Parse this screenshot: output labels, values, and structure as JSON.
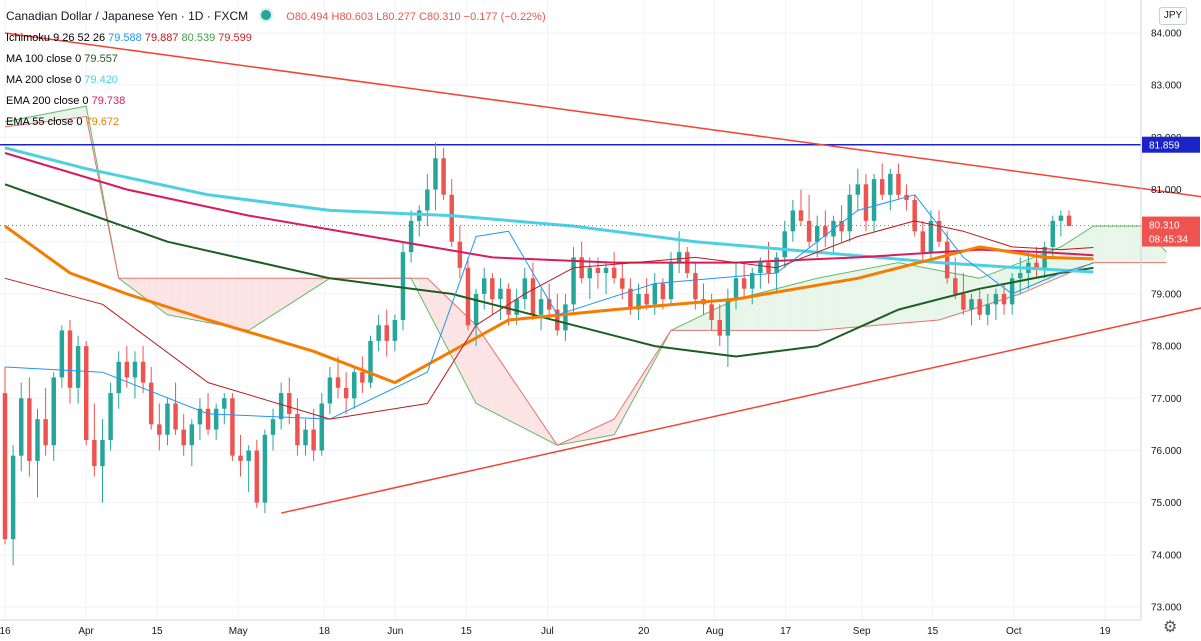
{
  "header": {
    "symbol_title": "Canadian Dollar / Japanese Yen · 1D · FXCM",
    "ohlc": {
      "o": "O80.494",
      "h": "H80.603",
      "l": "L80.277",
      "c": "C80.310",
      "change": "−0.177 (−0.22%)"
    }
  },
  "indicators": [
    {
      "label": "Ichimoku 9 26 52 26",
      "values": [
        "79.588",
        "79.887",
        "80.539",
        "79.599"
      ],
      "colors": [
        "#2196f3",
        "#b71c1c",
        "#43a047",
        "#c62828"
      ]
    },
    {
      "label": "MA 100 close 0",
      "values": [
        "79.557"
      ],
      "colors": [
        "#1b5e20"
      ]
    },
    {
      "label": "MA 200 close 0",
      "values": [
        "79.420"
      ],
      "colors": [
        "#4dd0e1"
      ]
    },
    {
      "label": "EMA 200 close 0",
      "values": [
        "79.738"
      ],
      "colors": [
        "#d81b60"
      ]
    },
    {
      "label": "EMA 55 close 0",
      "values": [
        "79.672"
      ],
      "colors": [
        "#f57c00"
      ]
    }
  ],
  "currency_button": "JPY",
  "price_labels": {
    "resistance": "81.859",
    "last": "80.310",
    "countdown": "08:45:34"
  },
  "colors": {
    "up": "#26a69a",
    "down": "#ef5350",
    "resistance_line": "#1a23c8",
    "trend_lines": "#f44336",
    "ma100": "#1b5e20",
    "ma200": "#4dd0e1",
    "ema200": "#d81b60",
    "ema55": "#f57c00",
    "tenkan": "#2196f3",
    "kijun": "#b71c1c",
    "lagging": "#43a047",
    "cloud_bull": "#e8f5e9",
    "cloud_bear": "#fce4e4"
  },
  "icons": {
    "settings": "gear-icon"
  },
  "chart_data": {
    "type": "candlestick",
    "title": "Canadian Dollar / Japanese Yen · 1D · FXCM",
    "y_axis": {
      "min": 73.0,
      "max": 84.0,
      "ticks": [
        "73.000",
        "74.000",
        "75.000",
        "76.000",
        "77.000",
        "78.000",
        "79.000",
        "80.000",
        "81.000",
        "82.000",
        "83.000",
        "84.000"
      ],
      "grid": true
    },
    "x_axis": {
      "ticks": [
        {
          "label": "16",
          "date": "2020-03-16"
        },
        {
          "label": "Apr",
          "date": "2020-04-01"
        },
        {
          "label": "15",
          "date": "2020-04-15"
        },
        {
          "label": "May",
          "date": "2020-05-01"
        },
        {
          "label": "18",
          "date": "2020-05-18"
        },
        {
          "label": "Jun",
          "date": "2020-06-01"
        },
        {
          "label": "15",
          "date": "2020-06-15"
        },
        {
          "label": "Jul",
          "date": "2020-07-01"
        },
        {
          "label": "20",
          "date": "2020-07-20"
        },
        {
          "label": "Aug",
          "date": "2020-08-03"
        },
        {
          "label": "17",
          "date": "2020-08-17"
        },
        {
          "label": "Sep",
          "date": "2020-09-01"
        },
        {
          "label": "15",
          "date": "2020-09-15"
        },
        {
          "label": "Oct",
          "date": "2020-10-01"
        },
        {
          "label": "19",
          "date": "2020-10-19"
        }
      ]
    },
    "candles": [
      [
        77.1,
        77.6,
        74.2,
        74.3
      ],
      [
        74.3,
        76.1,
        73.8,
        75.9
      ],
      [
        75.9,
        77.3,
        75.6,
        77.0
      ],
      [
        77.0,
        77.4,
        75.5,
        75.8
      ],
      [
        75.8,
        76.8,
        75.1,
        76.6
      ],
      [
        76.6,
        77.2,
        75.9,
        76.1
      ],
      [
        76.1,
        77.5,
        75.8,
        77.4
      ],
      [
        77.4,
        78.4,
        77.2,
        78.3
      ],
      [
        78.3,
        78.5,
        76.9,
        77.2
      ],
      [
        77.2,
        78.2,
        76.9,
        78.0
      ],
      [
        78.0,
        78.1,
        76.1,
        76.2
      ],
      [
        76.2,
        76.9,
        75.5,
        75.7
      ],
      [
        75.7,
        76.6,
        75.0,
        76.2
      ],
      [
        76.2,
        77.3,
        76.0,
        77.1
      ],
      [
        77.1,
        77.9,
        76.8,
        77.7
      ],
      [
        77.7,
        78.0,
        77.2,
        77.4
      ],
      [
        77.4,
        77.9,
        77.0,
        77.7
      ],
      [
        77.7,
        78.0,
        77.1,
        77.3
      ],
      [
        77.3,
        77.6,
        76.4,
        76.5
      ],
      [
        76.5,
        76.9,
        76.0,
        76.3
      ],
      [
        76.3,
        77.0,
        76.1,
        76.9
      ],
      [
        76.9,
        77.3,
        76.3,
        76.4
      ],
      [
        76.4,
        76.7,
        75.9,
        76.1
      ],
      [
        76.1,
        76.6,
        75.7,
        76.5
      ],
      [
        76.5,
        77.0,
        76.2,
        76.8
      ],
      [
        76.8,
        77.1,
        76.3,
        76.4
      ],
      [
        76.4,
        76.9,
        76.2,
        76.8
      ],
      [
        76.8,
        77.1,
        76.5,
        77.0
      ],
      [
        77.0,
        77.1,
        75.8,
        75.9
      ],
      [
        75.9,
        76.3,
        75.5,
        75.8
      ],
      [
        75.8,
        76.1,
        75.2,
        76.0
      ],
      [
        76.0,
        76.2,
        74.9,
        75.0
      ],
      [
        75.0,
        76.4,
        74.8,
        76.3
      ],
      [
        76.3,
        76.8,
        76.0,
        76.6
      ],
      [
        76.6,
        77.3,
        76.4,
        77.1
      ],
      [
        77.1,
        77.4,
        76.5,
        76.7
      ],
      [
        76.7,
        77.0,
        75.9,
        76.1
      ],
      [
        76.1,
        76.6,
        75.9,
        76.4
      ],
      [
        76.4,
        76.8,
        75.8,
        76.0
      ],
      [
        76.0,
        77.1,
        75.9,
        76.9
      ],
      [
        76.9,
        77.6,
        76.7,
        77.4
      ],
      [
        77.4,
        77.8,
        77.0,
        77.2
      ],
      [
        77.2,
        77.5,
        76.7,
        77.0
      ],
      [
        77.0,
        77.6,
        76.8,
        77.5
      ],
      [
        77.5,
        77.8,
        77.1,
        77.3
      ],
      [
        77.3,
        78.2,
        77.2,
        78.1
      ],
      [
        78.1,
        78.6,
        77.9,
        78.4
      ],
      [
        78.4,
        78.7,
        77.8,
        78.1
      ],
      [
        78.1,
        78.6,
        77.9,
        78.5
      ],
      [
        78.5,
        80.0,
        78.3,
        79.8
      ],
      [
        79.8,
        80.6,
        79.6,
        80.4
      ],
      [
        80.4,
        80.7,
        80.1,
        80.6
      ],
      [
        80.6,
        81.3,
        80.3,
        81.0
      ],
      [
        81.0,
        81.9,
        80.6,
        81.6
      ],
      [
        81.6,
        81.8,
        80.8,
        80.9
      ],
      [
        80.9,
        81.2,
        79.9,
        80.0
      ],
      [
        80.0,
        80.3,
        79.3,
        79.5
      ],
      [
        79.5,
        79.7,
        78.3,
        78.4
      ],
      [
        78.4,
        79.1,
        78.0,
        79.0
      ],
      [
        79.0,
        79.5,
        78.7,
        79.3
      ],
      [
        79.3,
        79.4,
        78.6,
        78.9
      ],
      [
        78.9,
        79.3,
        78.5,
        79.1
      ],
      [
        79.1,
        79.2,
        78.4,
        78.6
      ],
      [
        78.6,
        79.1,
        78.4,
        78.9
      ],
      [
        78.9,
        79.5,
        78.7,
        79.3
      ],
      [
        79.3,
        79.6,
        78.5,
        78.6
      ],
      [
        78.6,
        79.1,
        78.3,
        78.9
      ],
      [
        78.9,
        79.2,
        78.5,
        78.7
      ],
      [
        78.7,
        79.0,
        78.2,
        78.3
      ],
      [
        78.3,
        79.0,
        78.1,
        78.8
      ],
      [
        78.8,
        79.9,
        78.6,
        79.7
      ],
      [
        79.7,
        80.0,
        79.2,
        79.3
      ],
      [
        79.3,
        79.7,
        78.9,
        79.5
      ],
      [
        79.5,
        79.7,
        79.1,
        79.4
      ],
      [
        79.4,
        79.6,
        79.0,
        79.5
      ],
      [
        79.5,
        79.8,
        79.2,
        79.3
      ],
      [
        79.3,
        79.6,
        78.9,
        79.1
      ],
      [
        79.1,
        79.3,
        78.6,
        78.7
      ],
      [
        78.7,
        79.2,
        78.5,
        79.0
      ],
      [
        79.0,
        79.3,
        78.7,
        78.8
      ],
      [
        78.8,
        79.4,
        78.6,
        79.2
      ],
      [
        79.2,
        79.3,
        78.7,
        78.9
      ],
      [
        78.9,
        79.8,
        78.8,
        79.6
      ],
      [
        79.6,
        80.2,
        79.4,
        79.8
      ],
      [
        79.8,
        79.9,
        79.3,
        79.4
      ],
      [
        79.4,
        79.6,
        78.7,
        78.9
      ],
      [
        78.9,
        79.2,
        78.6,
        78.8
      ],
      [
        78.8,
        79.0,
        78.3,
        78.5
      ],
      [
        78.5,
        78.8,
        78.0,
        78.2
      ],
      [
        78.2,
        79.1,
        77.6,
        78.9
      ],
      [
        78.9,
        79.6,
        78.7,
        79.3
      ],
      [
        79.3,
        79.6,
        78.9,
        79.1
      ],
      [
        79.1,
        79.5,
        78.8,
        79.4
      ],
      [
        79.4,
        79.7,
        79.1,
        79.6
      ],
      [
        79.6,
        80.0,
        79.2,
        79.4
      ],
      [
        79.4,
        79.8,
        79.0,
        79.7
      ],
      [
        79.7,
        80.4,
        79.5,
        80.2
      ],
      [
        80.2,
        80.8,
        80.0,
        80.6
      ],
      [
        80.6,
        81.0,
        80.3,
        80.4
      ],
      [
        80.4,
        80.9,
        79.9,
        80.0
      ],
      [
        80.0,
        80.5,
        79.7,
        80.3
      ],
      [
        80.3,
        80.6,
        79.9,
        80.1
      ],
      [
        80.1,
        80.5,
        79.8,
        80.4
      ],
      [
        80.4,
        80.7,
        80.0,
        80.2
      ],
      [
        80.2,
        81.1,
        80.0,
        80.9
      ],
      [
        80.9,
        81.4,
        80.6,
        81.1
      ],
      [
        81.1,
        81.3,
        80.2,
        80.4
      ],
      [
        80.4,
        81.3,
        80.2,
        81.2
      ],
      [
        81.2,
        81.5,
        80.8,
        80.9
      ],
      [
        80.9,
        81.4,
        80.6,
        81.3
      ],
      [
        81.3,
        81.5,
        80.8,
        80.9
      ],
      [
        80.9,
        81.1,
        80.6,
        80.8
      ],
      [
        80.8,
        80.9,
        80.1,
        80.2
      ],
      [
        80.2,
        80.4,
        79.6,
        79.8
      ],
      [
        79.8,
        80.6,
        79.6,
        80.4
      ],
      [
        80.4,
        80.6,
        79.9,
        80.0
      ],
      [
        80.0,
        80.2,
        79.2,
        79.3
      ],
      [
        79.3,
        79.7,
        78.9,
        79.0
      ],
      [
        79.0,
        79.4,
        78.6,
        78.7
      ],
      [
        78.7,
        79.0,
        78.4,
        78.9
      ],
      [
        78.9,
        79.1,
        78.5,
        78.6
      ],
      [
        78.6,
        79.0,
        78.4,
        78.8
      ],
      [
        78.8,
        79.1,
        78.5,
        79.0
      ],
      [
        79.0,
        79.2,
        78.6,
        78.8
      ],
      [
        78.8,
        79.4,
        78.6,
        79.3
      ],
      [
        79.3,
        79.7,
        79.0,
        79.4
      ],
      [
        79.4,
        79.8,
        79.1,
        79.6
      ],
      [
        79.6,
        79.9,
        79.3,
        79.5
      ],
      [
        79.5,
        80.0,
        79.3,
        79.9
      ],
      [
        79.9,
        80.5,
        79.7,
        80.4
      ],
      [
        80.4,
        80.6,
        80.1,
        80.5
      ],
      [
        80.5,
        80.6,
        80.3,
        80.3
      ]
    ],
    "series": [
      {
        "name": "MA 100 close 0",
        "values": [
          [
            0,
            81.1
          ],
          [
            20,
            80.0
          ],
          [
            40,
            79.3
          ],
          [
            55,
            79.0
          ],
          [
            70,
            78.4
          ],
          [
            80,
            78.0
          ],
          [
            90,
            77.8
          ],
          [
            100,
            78.0
          ],
          [
            110,
            78.7
          ],
          [
            120,
            79.1
          ],
          [
            130,
            79.4
          ],
          [
            134,
            79.5
          ]
        ]
      },
      {
        "name": "MA 200 close 0",
        "values": [
          [
            0,
            81.8
          ],
          [
            10,
            81.4
          ],
          [
            25,
            80.9
          ],
          [
            40,
            80.6
          ],
          [
            55,
            80.5
          ],
          [
            70,
            80.3
          ],
          [
            85,
            80.0
          ],
          [
            100,
            79.8
          ],
          [
            115,
            79.6
          ],
          [
            125,
            79.5
          ],
          [
            134,
            79.42
          ]
        ]
      },
      {
        "name": "EMA 200 close 0",
        "values": [
          [
            0,
            81.7
          ],
          [
            15,
            81.0
          ],
          [
            30,
            80.5
          ],
          [
            45,
            80.1
          ],
          [
            60,
            79.7
          ],
          [
            75,
            79.6
          ],
          [
            90,
            79.6
          ],
          [
            105,
            79.7
          ],
          [
            120,
            79.85
          ],
          [
            128,
            79.8
          ],
          [
            134,
            79.74
          ]
        ]
      },
      {
        "name": "EMA 55 close 0",
        "values": [
          [
            0,
            80.3
          ],
          [
            8,
            79.4
          ],
          [
            15,
            79.0
          ],
          [
            25,
            78.5
          ],
          [
            38,
            77.9
          ],
          [
            48,
            77.3
          ],
          [
            55,
            77.9
          ],
          [
            62,
            78.5
          ],
          [
            75,
            78.7
          ],
          [
            90,
            78.9
          ],
          [
            105,
            79.3
          ],
          [
            115,
            79.7
          ],
          [
            120,
            79.9
          ],
          [
            128,
            79.7
          ],
          [
            134,
            79.67
          ]
        ]
      },
      {
        "name": "Tenkan",
        "values": [
          [
            0,
            77.6
          ],
          [
            12,
            77.5
          ],
          [
            25,
            76.7
          ],
          [
            40,
            76.6
          ],
          [
            52,
            77.5
          ],
          [
            58,
            80.1
          ],
          [
            62,
            80.2
          ],
          [
            68,
            78.6
          ],
          [
            80,
            79.2
          ],
          [
            95,
            79.4
          ],
          [
            105,
            80.6
          ],
          [
            112,
            80.9
          ],
          [
            118,
            79.7
          ],
          [
            124,
            79.0
          ],
          [
            130,
            79.4
          ],
          [
            134,
            79.59
          ]
        ]
      },
      {
        "name": "Kijun",
        "values": [
          [
            0,
            79.3
          ],
          [
            12,
            78.8
          ],
          [
            25,
            77.3
          ],
          [
            40,
            76.6
          ],
          [
            52,
            76.9
          ],
          [
            58,
            78.4
          ],
          [
            64,
            79.0
          ],
          [
            70,
            79.5
          ],
          [
            85,
            79.7
          ],
          [
            95,
            79.5
          ],
          [
            105,
            80.1
          ],
          [
            112,
            80.4
          ],
          [
            118,
            80.2
          ],
          [
            124,
            79.9
          ],
          [
            130,
            79.85
          ],
          [
            134,
            79.89
          ]
        ]
      }
    ],
    "levels": [
      {
        "name": "resistance",
        "value": 81.859
      }
    ],
    "trend_lines": [
      {
        "from": {
          "bar": 0,
          "value": 84.0
        },
        "to": {
          "bar": 155,
          "value": 80.7
        }
      },
      {
        "from": {
          "bar": 34,
          "value": 74.8
        },
        "to": {
          "bar": 155,
          "value": 79.0
        }
      }
    ],
    "last_price": 80.31
  }
}
